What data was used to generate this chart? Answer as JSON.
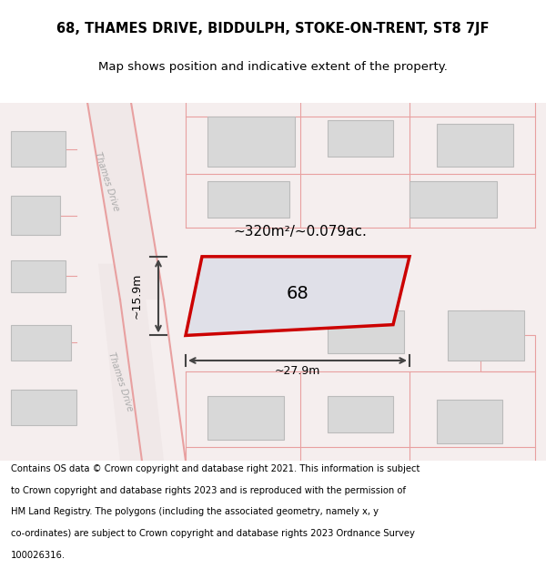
{
  "title_line1": "68, THAMES DRIVE, BIDDULPH, STOKE-ON-TRENT, ST8 7JF",
  "title_line2": "Map shows position and indicative extent of the property.",
  "footer_text": "Contains OS data © Crown copyright and database right 2021. This information is subject to Crown copyright and database rights 2023 and is reproduced with the permission of HM Land Registry. The polygons (including the associated geometry, namely x, y co-ordinates) are subject to Crown copyright and database rights 2023 Ordnance Survey 100026316.",
  "area_label": "~320m²/~0.079ac.",
  "number_label": "68",
  "width_label": "~27.9m",
  "height_label": "~15.9m",
  "bg_color": "#f5f0f0",
  "map_bg": "#ffffff",
  "road_color": "#f5c0c0",
  "building_color": "#d8d8d8",
  "highlight_color": "#cc0000",
  "highlight_fill": "#e0e0e8",
  "road_line_color": "#e8a0a0",
  "dim_line_color": "#444444",
  "street_label1": "Thames Drive",
  "street_label2": "Thames Drive",
  "figsize": [
    6.0,
    6.25
  ],
  "dpi": 100
}
